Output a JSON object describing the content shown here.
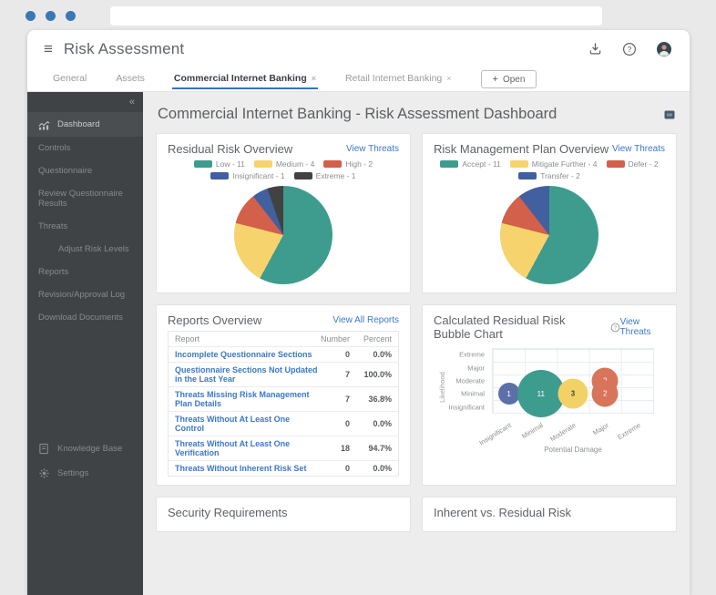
{
  "app": {
    "title": "Risk Assessment",
    "tabs": [
      {
        "label": "General",
        "closable": false,
        "active": false
      },
      {
        "label": "Assets",
        "closable": false,
        "active": false
      },
      {
        "label": "Commercial Internet Banking",
        "closable": true,
        "active": true
      },
      {
        "label": "Retail Internet Banking",
        "closable": true,
        "active": false
      }
    ],
    "open_button_label": "Open"
  },
  "sidebar": {
    "collapse_glyph": "«",
    "items": [
      {
        "label": "Dashboard",
        "icon": "dashboard-icon",
        "active": true,
        "indent": false
      },
      {
        "label": "Controls",
        "icon": null,
        "active": false,
        "indent": false
      },
      {
        "label": "Questionnaire",
        "icon": null,
        "active": false,
        "indent": false
      },
      {
        "label": "Review Questionnaire Results",
        "icon": null,
        "active": false,
        "indent": false
      },
      {
        "label": "Threats",
        "icon": null,
        "active": false,
        "indent": false
      },
      {
        "label": "Adjust Risk Levels",
        "icon": null,
        "active": false,
        "indent": true
      },
      {
        "label": "Reports",
        "icon": null,
        "active": false,
        "indent": false
      },
      {
        "label": "Revision/Approval Log",
        "icon": null,
        "active": false,
        "indent": false
      },
      {
        "label": "Download Documents",
        "icon": null,
        "active": false,
        "indent": false
      }
    ],
    "footer_items": [
      {
        "label": "Knowledge Base",
        "icon": "book-icon"
      },
      {
        "label": "Settings",
        "icon": "gear-icon"
      }
    ]
  },
  "main": {
    "title": "Commercial Internet Banking - Risk Assessment Dashboard"
  },
  "cards": {
    "residual": {
      "title": "Residual Risk Overview",
      "link": "View Threats"
    },
    "rmp": {
      "title": "Risk Management Plan Overview",
      "link": "View Threats"
    },
    "reports": {
      "title": "Reports Overview",
      "link": "View All Reports",
      "columns": [
        "Report",
        "Number",
        "Percent"
      ],
      "rows": [
        {
          "label": "Incomplete Questionnaire Sections",
          "number": "0",
          "percent": "0.0%"
        },
        {
          "label": "Questionnaire Sections Not Updated in the Last Year",
          "number": "7",
          "percent": "100.0%"
        },
        {
          "label": "Threats Missing Risk Management Plan Details",
          "number": "7",
          "percent": "36.8%"
        },
        {
          "label": "Threats Without At Least One Control",
          "number": "0",
          "percent": "0.0%"
        },
        {
          "label": "Threats Without At Least One Verification",
          "number": "18",
          "percent": "94.7%"
        },
        {
          "label": "Threats Without Inherent Risk Set",
          "number": "0",
          "percent": "0.0%"
        }
      ]
    },
    "bubble": {
      "title": "Calculated Residual Risk Bubble Chart",
      "link": "View Threats"
    },
    "security": {
      "title": "Security Requirements"
    },
    "inherent": {
      "title": "Inherent vs. Residual Risk"
    }
  },
  "chart_data": [
    {
      "type": "pie",
      "title": "Residual Risk Overview",
      "categories": [
        "Low",
        "Medium",
        "High",
        "Insignificant",
        "Extreme"
      ],
      "values": [
        11,
        4,
        2,
        1,
        1
      ],
      "colors": [
        "#3d9c8e",
        "#f6d36c",
        "#d2604a",
        "#42609f",
        "#424242"
      ],
      "legend_position": "top",
      "legend_labels": [
        "Low - 11",
        "Medium - 4",
        "High - 2",
        "Insignificant - 1",
        "Extreme - 1"
      ]
    },
    {
      "type": "pie",
      "title": "Risk Management Plan Overview",
      "categories": [
        "Accept",
        "Mitigate Further",
        "Defer",
        "Transfer"
      ],
      "values": [
        11,
        4,
        2,
        2
      ],
      "colors": [
        "#3d9c8e",
        "#f6d36c",
        "#d2604a",
        "#42609f"
      ],
      "legend_position": "top",
      "legend_labels": [
        "Accept - 11",
        "Mitigate Further - 4",
        "Defer - 2",
        "Transfer - 2"
      ]
    },
    {
      "type": "scatter",
      "subtype": "bubble",
      "title": "Calculated Residual Risk Bubble Chart",
      "xlabel": "Potential Damage",
      "ylabel": "Likelihood",
      "x_categories": [
        "Insignificant",
        "Minimal",
        "Moderate",
        "Major",
        "Extreme"
      ],
      "y_categories": [
        "Extreme",
        "Major",
        "Moderate",
        "Minimal",
        "Insignificant"
      ],
      "grid": true,
      "points": [
        {
          "x": "Insignificant",
          "y": "Minimal",
          "value": 1,
          "color": "#5c6fa7"
        },
        {
          "x": "Minimal",
          "y": "Minimal",
          "value": 11,
          "color": "#3d9c8e"
        },
        {
          "x": "Moderate",
          "y": "Minimal",
          "value": 3,
          "color": "#f2d267",
          "dark_text": true
        },
        {
          "x": "Major",
          "y": "Moderate",
          "value": 2,
          "color": "#d8745a"
        },
        {
          "x": "Major",
          "y": "Minimal",
          "value": 2,
          "color": "#d8745a"
        }
      ]
    }
  ],
  "colors": {
    "link": "#3c77c9",
    "tab_underline": "#3b6fc9",
    "sidebar_bg": "#404346",
    "teal": "#3d9c8e",
    "yellow": "#f6d36c",
    "red": "#d2604a",
    "blue": "#42609f",
    "dark": "#424242",
    "chrome_dot": "#3a78b5"
  },
  "icons": {
    "hamburger": "≡",
    "download": "download-icon",
    "help": "help-icon",
    "user": "user-avatar-icon",
    "plus": "+",
    "tab_close": "×",
    "question_circle": "question-circle-icon"
  }
}
